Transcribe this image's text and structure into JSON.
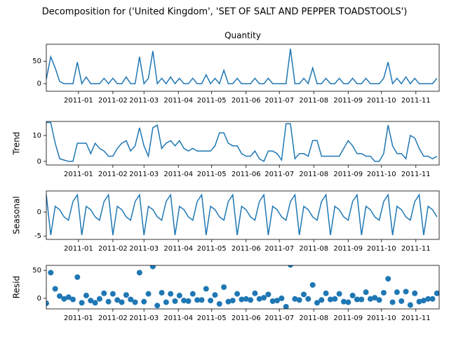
{
  "chart_data": {
    "type": "decomposition",
    "title": "Decomposition for ('United Kingdom', 'SET OF SALT AND PEPPER TOADSTOOLS')",
    "x": [
      -29,
      -25,
      -21,
      -17,
      -13,
      -9,
      -5,
      -1,
      3,
      7,
      11,
      15,
      19,
      23,
      27,
      31,
      35,
      39,
      43,
      47,
      51,
      55,
      59,
      63,
      67,
      71,
      75,
      79,
      83,
      87,
      91,
      95,
      99,
      103,
      107,
      111,
      115,
      119,
      123,
      127,
      131,
      135,
      139,
      143,
      147,
      151,
      155,
      159,
      163,
      167,
      171,
      175,
      179,
      183,
      187,
      191,
      195,
      199,
      203,
      207,
      211,
      215,
      219,
      223,
      227,
      231,
      235,
      239,
      243,
      247,
      251,
      255,
      259,
      263,
      267,
      271,
      275,
      279,
      283,
      287,
      291,
      295,
      299,
      303,
      307,
      311,
      315,
      319,
      323
    ],
    "xlim": [
      -29,
      325
    ],
    "xticks": [
      {
        "value": 0,
        "label": "2011-01"
      },
      {
        "value": 31,
        "label": "2011-02"
      },
      {
        "value": 59,
        "label": "2011-03"
      },
      {
        "value": 90,
        "label": "2011-04"
      },
      {
        "value": 120,
        "label": "2011-05"
      },
      {
        "value": 151,
        "label": "2011-06"
      },
      {
        "value": 181,
        "label": "2011-07"
      },
      {
        "value": 212,
        "label": "2011-08"
      },
      {
        "value": 243,
        "label": "2011-09"
      },
      {
        "value": 273,
        "label": "2011-10"
      },
      {
        "value": 304,
        "label": "2011-11"
      }
    ],
    "series": [
      {
        "name": "Quantity",
        "type": "line",
        "color": "#1f77b4",
        "ylim": [
          -17,
          88
        ],
        "yticks": [
          0,
          50
        ],
        "values": [
          10,
          60,
          35,
          5,
          0,
          0,
          0,
          48,
          0,
          15,
          0,
          0,
          0,
          12,
          0,
          12,
          0,
          0,
          15,
          0,
          0,
          60,
          0,
          12,
          73,
          0,
          12,
          0,
          15,
          0,
          12,
          0,
          0,
          12,
          0,
          0,
          20,
          0,
          12,
          0,
          30,
          0,
          0,
          12,
          0,
          0,
          0,
          12,
          0,
          0,
          12,
          0,
          0,
          0,
          0,
          78,
          0,
          0,
          12,
          0,
          35,
          0,
          0,
          12,
          0,
          0,
          12,
          0,
          0,
          12,
          0,
          0,
          12,
          0,
          0,
          0,
          12,
          48,
          0,
          12,
          0,
          15,
          0,
          12,
          0,
          0,
          0,
          0,
          12
        ]
      },
      {
        "name": "Trend",
        "type": "line",
        "color": "#1f77b4",
        "ylim": [
          -1.4,
          15.4
        ],
        "yticks": [
          0,
          10
        ],
        "values": [
          15,
          15,
          7,
          1,
          0.5,
          0,
          0,
          7,
          7,
          7,
          3,
          7,
          5,
          4,
          2,
          2,
          5,
          7,
          8,
          4,
          6,
          13,
          6,
          2,
          13,
          14,
          5,
          7,
          8,
          6,
          8,
          5,
          4,
          5,
          4,
          4,
          4,
          4,
          6,
          11,
          11,
          7,
          6,
          6,
          3,
          2,
          2,
          4,
          1,
          0,
          4,
          4,
          3,
          0.5,
          14.5,
          14.5,
          1,
          3,
          3,
          2,
          8,
          8,
          2,
          2,
          2,
          2,
          2,
          5,
          8,
          6,
          3,
          3,
          2,
          2,
          0,
          0,
          3,
          14,
          6,
          3,
          3,
          1,
          10,
          9,
          5,
          2,
          2,
          1,
          2
        ]
      },
      {
        "name": "Seasonal",
        "type": "line",
        "color": "#1f77b4",
        "ylim": [
          -5.7,
          4.4
        ],
        "yticks": [
          -5,
          0
        ],
        "values": [
          3.6,
          -4.8,
          1.2,
          0.5,
          -1.0,
          -1.7,
          2.2,
          3.6,
          -4.8,
          1.2,
          0.5,
          -1.0,
          -1.7,
          2.2,
          3.6,
          -4.8,
          1.2,
          0.5,
          -1.0,
          -1.7,
          2.2,
          3.6,
          -4.8,
          1.2,
          0.5,
          -1.0,
          -1.7,
          2.2,
          3.6,
          -4.8,
          1.2,
          0.5,
          -1.0,
          -1.7,
          2.2,
          3.6,
          -4.8,
          1.2,
          0.5,
          -1.0,
          -1.7,
          2.2,
          3.6,
          -4.8,
          1.2,
          0.5,
          -1.0,
          -1.7,
          2.2,
          3.6,
          -4.8,
          1.2,
          0.5,
          -1.0,
          -1.7,
          2.2,
          3.6,
          -4.8,
          1.2,
          0.5,
          -1.0,
          -1.7,
          2.2,
          3.6,
          -4.8,
          1.2,
          0.5,
          -1.0,
          -1.7,
          2.2,
          3.6,
          -4.8,
          1.2,
          0.5,
          -1.0,
          -1.7,
          2.2,
          3.6,
          -4.8,
          1.2,
          0.5,
          -1.0,
          -1.7,
          2.2,
          3.6,
          -4.8,
          1.2,
          0.5,
          -1.0
        ]
      },
      {
        "name": "Resid",
        "type": "scatter",
        "color": "#1f77b4",
        "ylim": [
          -19,
          59
        ],
        "yticks": [
          0,
          50
        ],
        "values": [
          -9,
          46,
          17,
          4,
          -1,
          2,
          -2,
          38,
          -8,
          5,
          -4,
          -8,
          -1,
          9,
          -6,
          8,
          -3,
          -7,
          6,
          -2,
          -7,
          46,
          -6,
          8,
          57,
          -13,
          10,
          -7,
          8,
          -5,
          5,
          -4,
          -5,
          8,
          -3,
          -3,
          17,
          -4,
          6,
          -10,
          20,
          -6,
          -4,
          8,
          -2,
          -1,
          -3,
          9,
          -1,
          1,
          7,
          -5,
          -4,
          0,
          -15,
          60,
          -1,
          -3,
          7,
          -1,
          24,
          -8,
          -3,
          9,
          -2,
          -1,
          8,
          -6,
          -7,
          5,
          -2,
          -2,
          11,
          -1,
          1,
          -3,
          10,
          35,
          -7,
          11,
          -5,
          12,
          -12,
          9,
          -6,
          -4,
          -1,
          -1,
          9
        ]
      }
    ]
  }
}
